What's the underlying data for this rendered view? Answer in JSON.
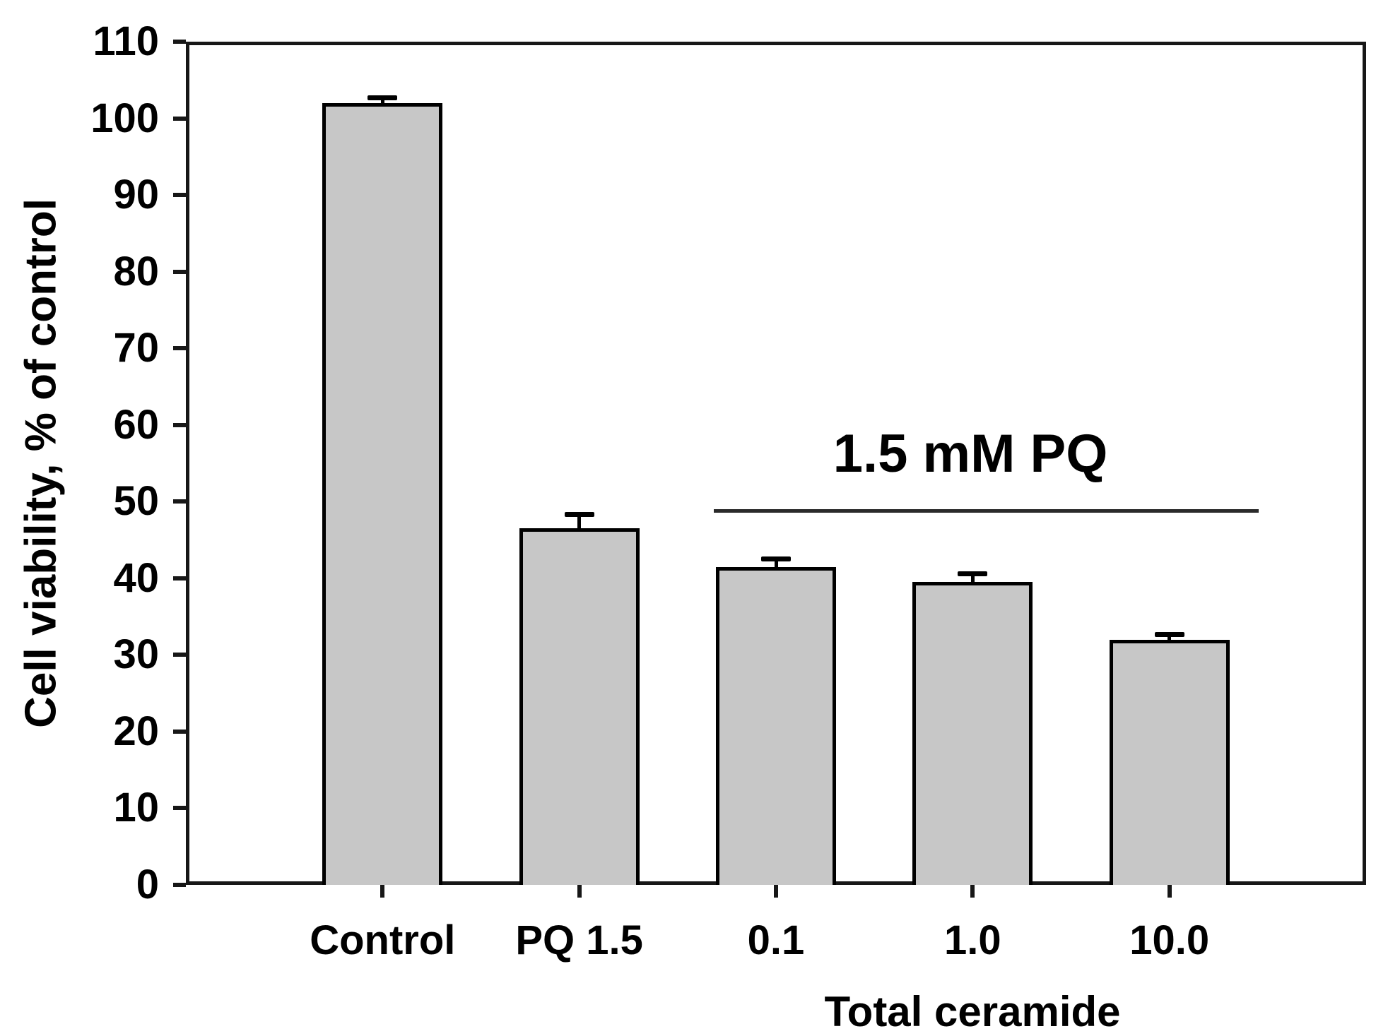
{
  "figure": {
    "background": "#ffffff",
    "text_color": "#000000"
  },
  "chart_data": {
    "type": "bar",
    "title": "",
    "categories": [
      "Control",
      "PQ 1.5",
      "0.1",
      "1.0",
      "10.0"
    ],
    "values": [
      102,
      46.5,
      41.5,
      39.5,
      32
    ],
    "errors_plus": [
      0.7,
      1.9,
      1.1,
      1.1,
      0.7
    ],
    "ylabel": "Cell viability, % of control",
    "xlabel": "",
    "group_xlabel": "Total ceramide",
    "group_xlabel_categories": [
      "0.1",
      "1.0",
      "10.0"
    ],
    "ylim": [
      0,
      110
    ],
    "yticks": [
      0,
      10,
      20,
      30,
      40,
      50,
      60,
      70,
      80,
      90,
      100,
      110
    ],
    "grid": false,
    "legend": "none",
    "bar_fill": "#c7c7c7",
    "bar_edge": "#000000",
    "annotation": {
      "text": "1.5 mM PQ",
      "line_y_value": 48.8,
      "line_x_start_frac": 0.4473,
      "line_x_end_frac": 0.909,
      "text_center_frac": 0.6647
    }
  }
}
